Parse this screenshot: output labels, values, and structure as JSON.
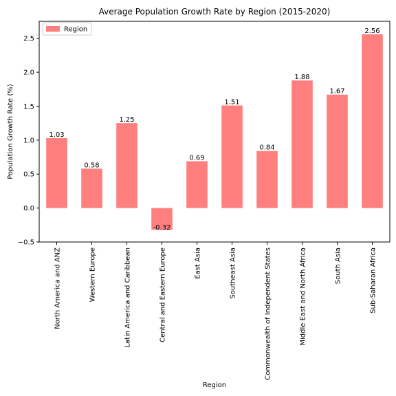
{
  "chart_data": {
    "type": "bar",
    "title": "Average Population Growth Rate by Region (2015-2020)",
    "xlabel": "Region",
    "ylabel": "Population Growth Rate (%)",
    "categories": [
      "North America and ANZ",
      "Western Europe",
      "Latin America and Caribbean",
      "Central and Eastern Europe",
      "East Asia",
      "Southeast Asia",
      "Commonwealth of Independent States",
      "Middle East and North Africa",
      "South Asia",
      "Sub-Saharan Africa"
    ],
    "series": [
      {
        "name": "Region",
        "values": [
          1.03,
          0.58,
          1.25,
          -0.32,
          0.69,
          1.51,
          0.84,
          1.88,
          1.67,
          2.56
        ],
        "color": "#ff7f7f"
      }
    ],
    "data_labels": [
      "1.03",
      "0.58",
      "1.25",
      "-0.32",
      "0.69",
      "1.51",
      "0.84",
      "1.88",
      "1.67",
      "2.56"
    ],
    "ylim": [
      -0.5,
      2.75
    ],
    "yticks": [
      -0.5,
      0.0,
      0.5,
      1.0,
      1.5,
      2.0,
      2.5
    ],
    "ytick_labels": [
      "−0.5",
      "0.0",
      "0.5",
      "1.0",
      "1.5",
      "2.0",
      "2.5"
    ],
    "grid": false,
    "legend_position": "top-left"
  }
}
